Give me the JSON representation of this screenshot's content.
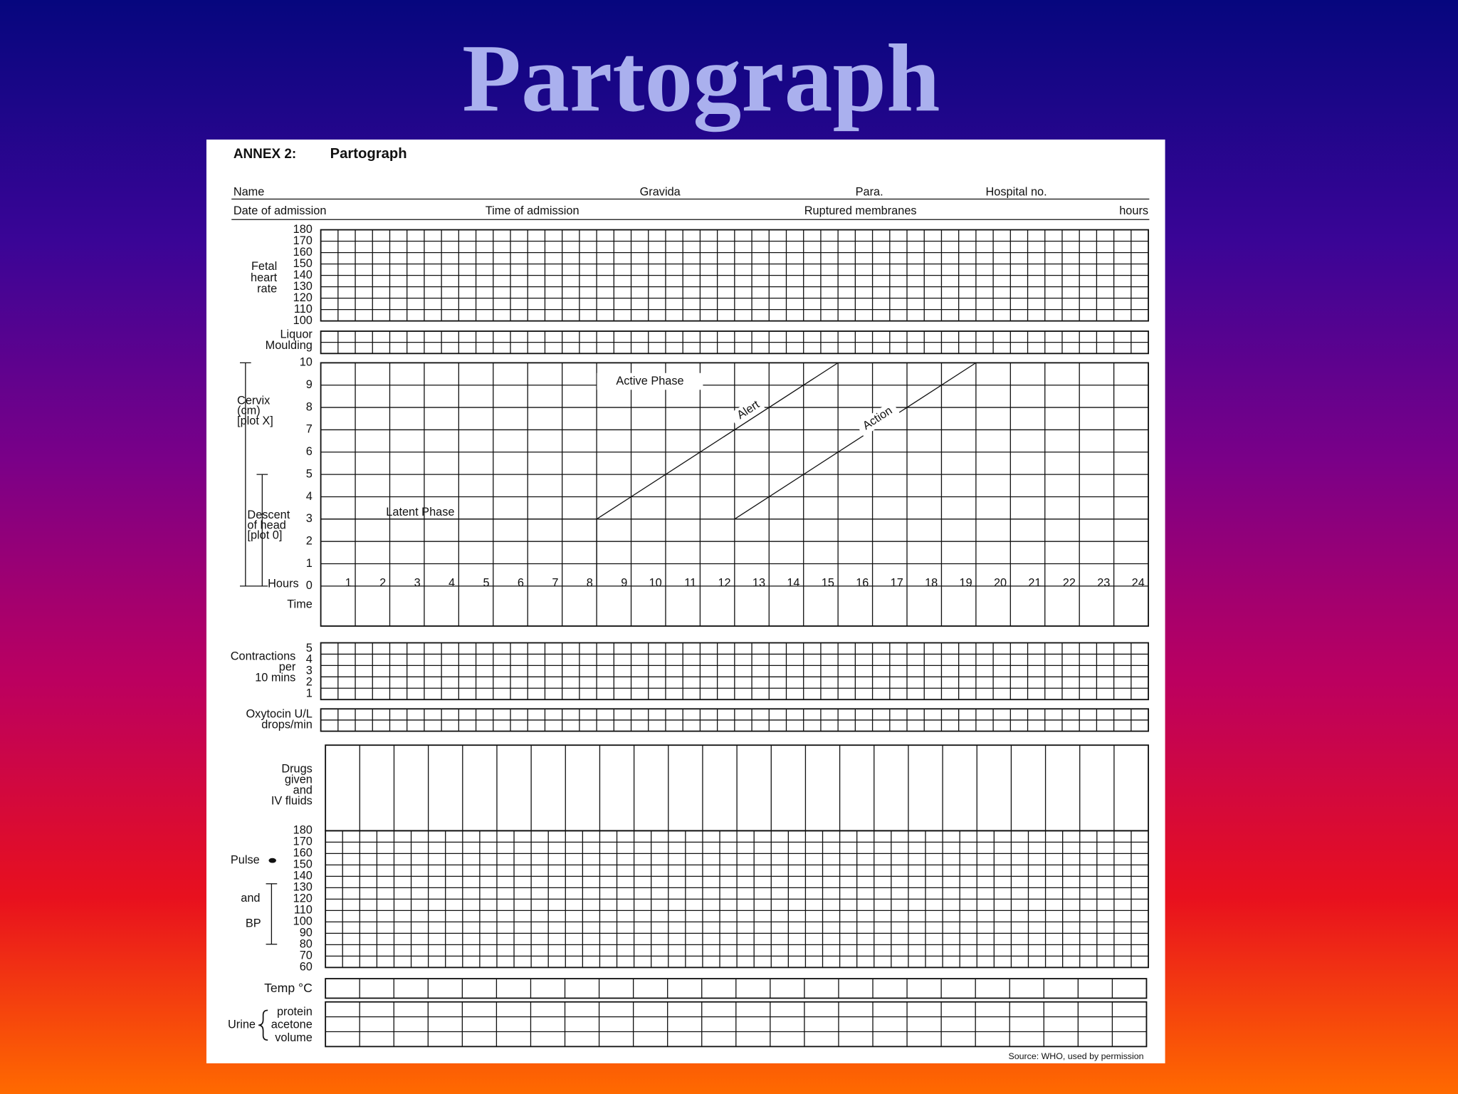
{
  "title": "Partograph",
  "form": {
    "heading": {
      "prefix": "ANNEX 2:",
      "name": "Partograph"
    },
    "fields_row1": [
      "Name",
      "Gravida",
      "Para.",
      "Hospital no."
    ],
    "fields_row2": [
      "Date of admission",
      "Time of admission",
      "Ruptured membranes",
      "hours"
    ],
    "fetal_heart_rate": {
      "label": [
        "Fetal",
        "heart",
        "rate"
      ],
      "scale": [
        180,
        170,
        160,
        150,
        140,
        130,
        120,
        110,
        100
      ]
    },
    "liquor_moulding": [
      "Liquor",
      "Moulding"
    ],
    "cervix": {
      "label": [
        "Cervix",
        "(cm)",
        "[plot X]"
      ],
      "descent_label": [
        "Descent",
        "of head",
        "[plot 0]"
      ],
      "scale": [
        10,
        9,
        8,
        7,
        6,
        5,
        4,
        3,
        2,
        1,
        0
      ],
      "hours_label": "Hours",
      "hours": [
        1,
        2,
        3,
        4,
        5,
        6,
        7,
        8,
        9,
        10,
        11,
        12,
        13,
        14,
        15,
        16,
        17,
        18,
        19,
        20,
        21,
        22,
        23,
        24
      ],
      "time_label": "Time",
      "active_phase": "Active Phase",
      "latent_phase": "Latent Phase",
      "alert": "Alert",
      "action": "Action"
    },
    "contractions": {
      "label": [
        "Contractions",
        "per",
        "10 mins"
      ],
      "scale": [
        5,
        4,
        3,
        2,
        1
      ]
    },
    "oxytocin": [
      "Oxytocin U/L",
      "drops/min"
    ],
    "drugs": [
      "Drugs",
      "given",
      "and",
      "IV fluids"
    ],
    "pulse_bp": {
      "pulse": "Pulse",
      "and": "and",
      "bp": "BP",
      "scale": [
        180,
        170,
        160,
        150,
        140,
        130,
        120,
        110,
        100,
        90,
        80,
        70,
        60
      ]
    },
    "temp": "Temp °C",
    "urine": {
      "label": "Urine",
      "rows": [
        "protein",
        "acetone",
        "volume"
      ]
    },
    "source": "Source: WHO, used by permission"
  }
}
